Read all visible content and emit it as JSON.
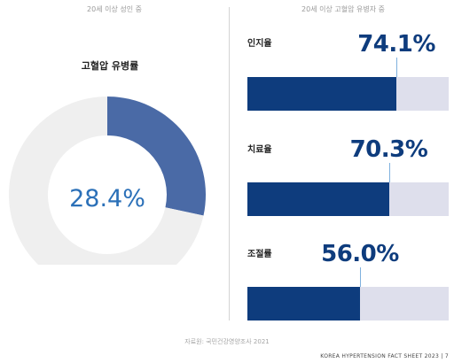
{
  "chart_data": [
    {
      "type": "pie",
      "caption": "20세 이상 성인 중",
      "title": "고혈압 유병률",
      "slices": [
        {
          "value": 28.4,
          "label": "28.4%",
          "color": "#4a6aa6"
        },
        {
          "value": 71.6,
          "color": "#efefef"
        }
      ]
    },
    {
      "type": "bar",
      "caption": "20세 이상 고혈압 유병자 중",
      "xlim": [
        0,
        100
      ],
      "categories": [
        "인지율",
        "치료율",
        "조절률"
      ],
      "values": [
        74.1,
        70.3,
        56.0
      ],
      "value_labels": [
        "74.1%",
        "70.3%",
        "56.0%"
      ],
      "bar_color": "#0e3c7d",
      "track_color": "#dedfec"
    }
  ],
  "source": "자료원: 국민건강영양조사 2021",
  "footer": "KOREA HYPERTENSION FACT SHEET 2023 | 7"
}
